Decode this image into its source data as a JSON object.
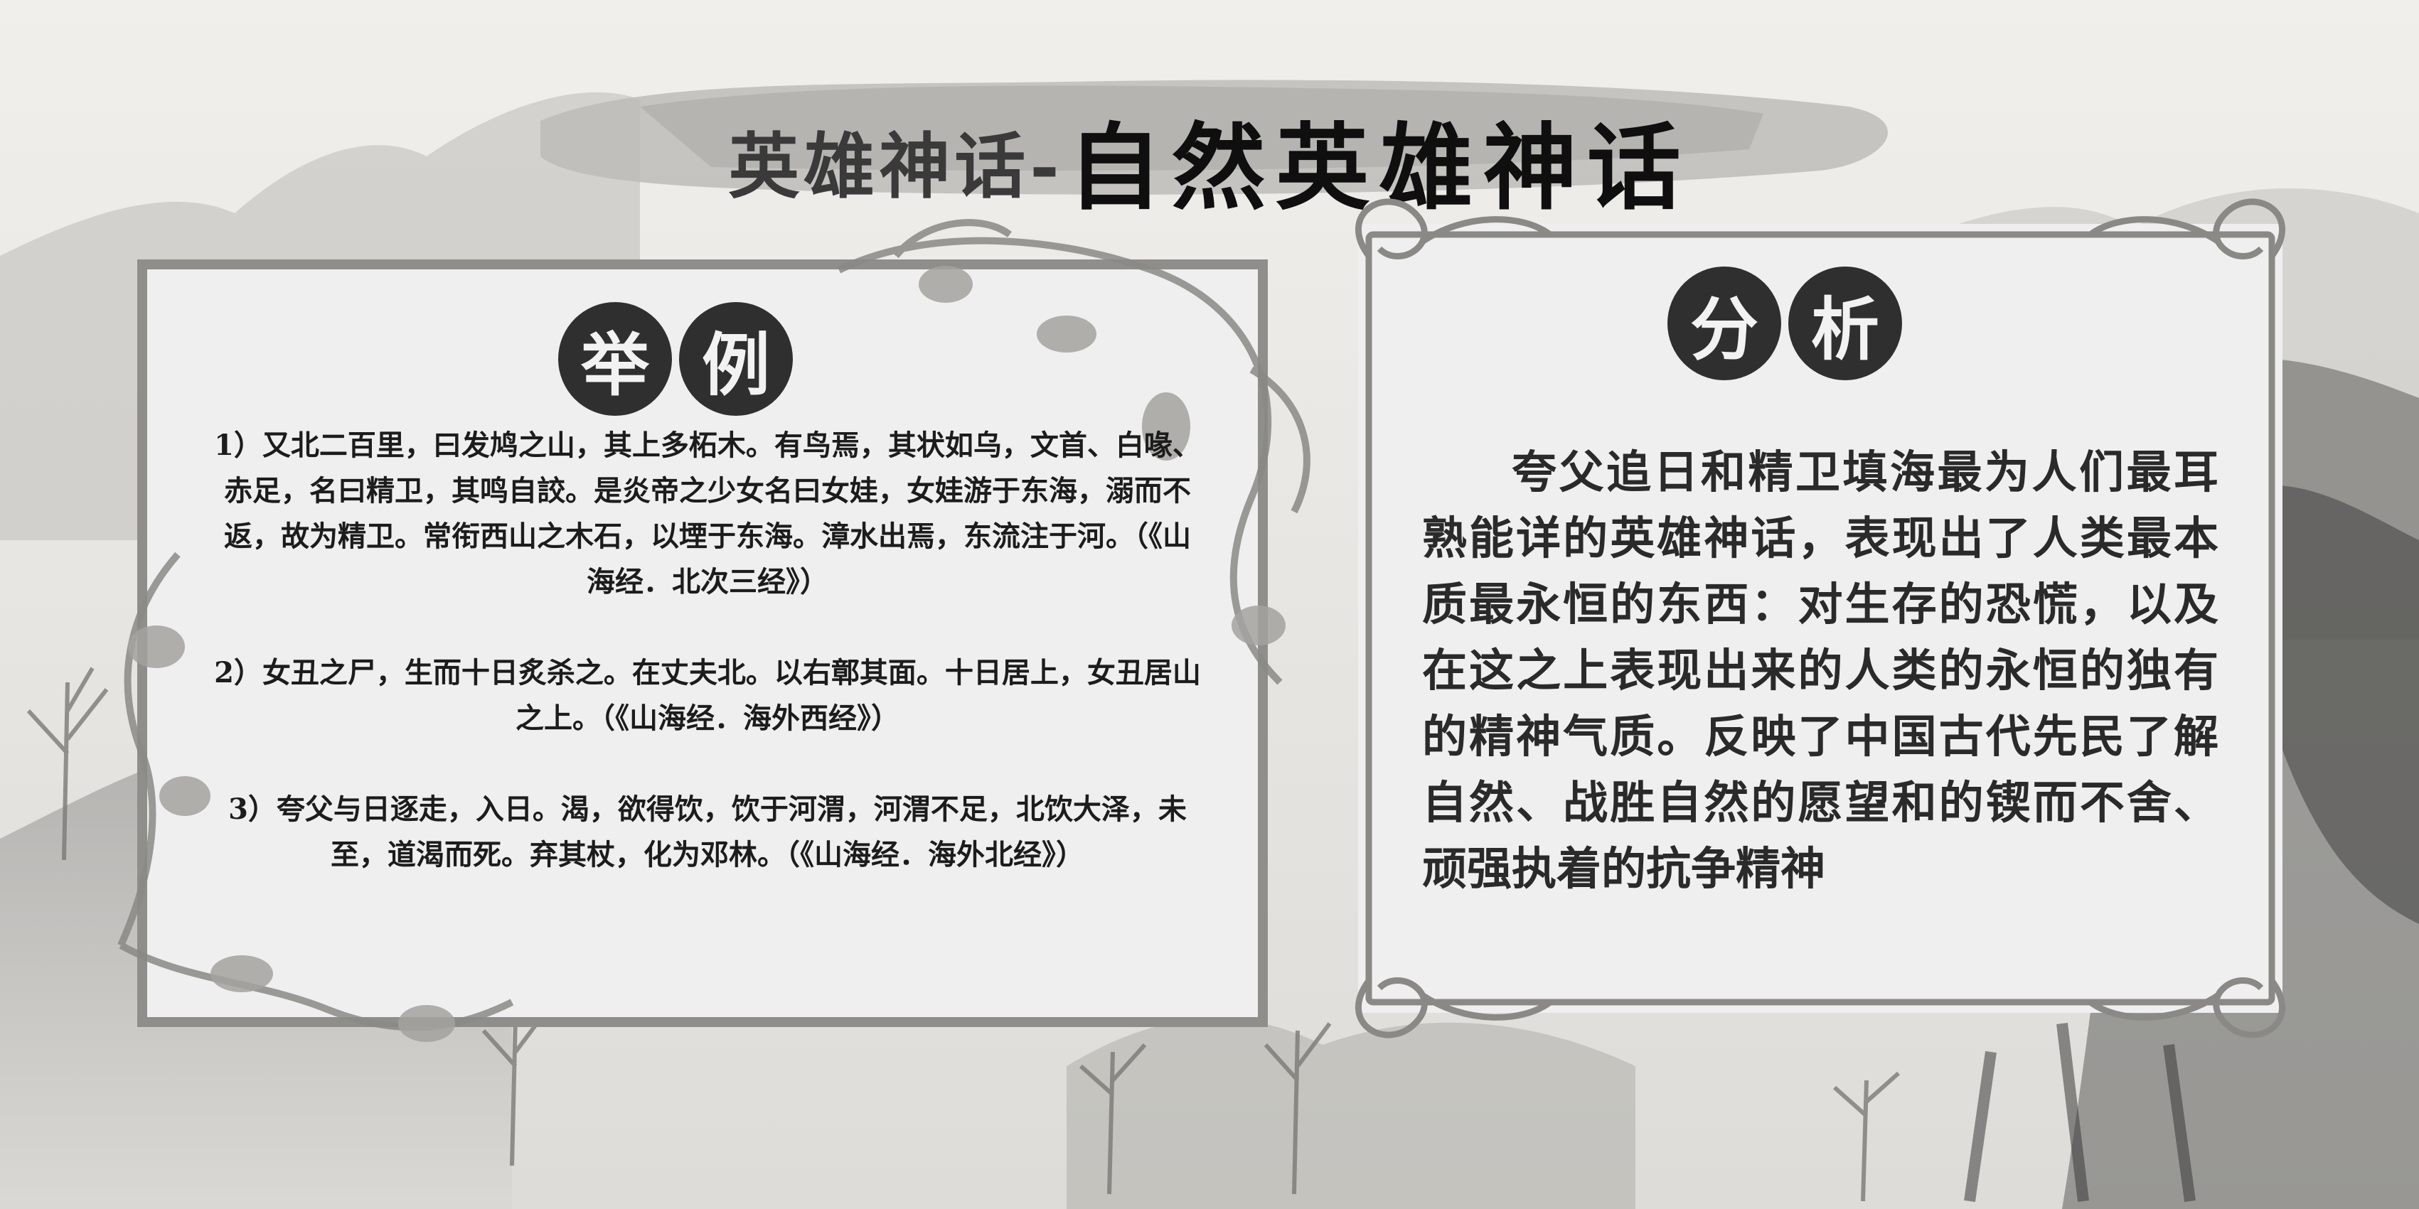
{
  "header": {
    "title_prefix": "英雄神话-",
    "title_main": "自然英雄神话"
  },
  "left_panel": {
    "badge_chars": [
      "举",
      "例"
    ],
    "examples": [
      "1）又北二百里，曰发鸠之山，其上多柘木。有鸟焉，其状如乌，文首、白喙、赤足，名曰精卫，其鸣自詨。是炎帝之少女名曰女娃，女娃游于东海，溺而不返，故为精卫。常衔西山之木石，以堙于东海。漳水出焉，东流注于河。（《山海经．北次三经》）",
      "2）女丑之尸，生而十日炙杀之。在丈夫北。以右鄣其面。十日居上，女丑居山之上。（《山海经．海外西经》）",
      "3）夸父与日逐走，入日。渴，欲得饮，饮于河渭，河渭不足，北饮大泽，未至，道渴而死。弃其杖，化为邓林。（《山海经．海外北经》）"
    ]
  },
  "right_panel": {
    "badge_chars": [
      "分",
      "析"
    ],
    "analysis": "夸父追日和精卫填海最为人们最耳熟能详的英雄神话，表现出了人类最本质最永恒的东西：对生存的恐慌，以及在这之上表现出来的人类的永恒的独有的精神气质。反映了中国古代先民了解自然、战胜自然的愿望和的锲而不舍、顽强执着的抗争精神"
  },
  "colors": {
    "background": "#ece9e4",
    "panel": "#efefef",
    "border": "#8f8e8a",
    "badge": "#2f2f2f",
    "ink": "#1c1c1c"
  }
}
